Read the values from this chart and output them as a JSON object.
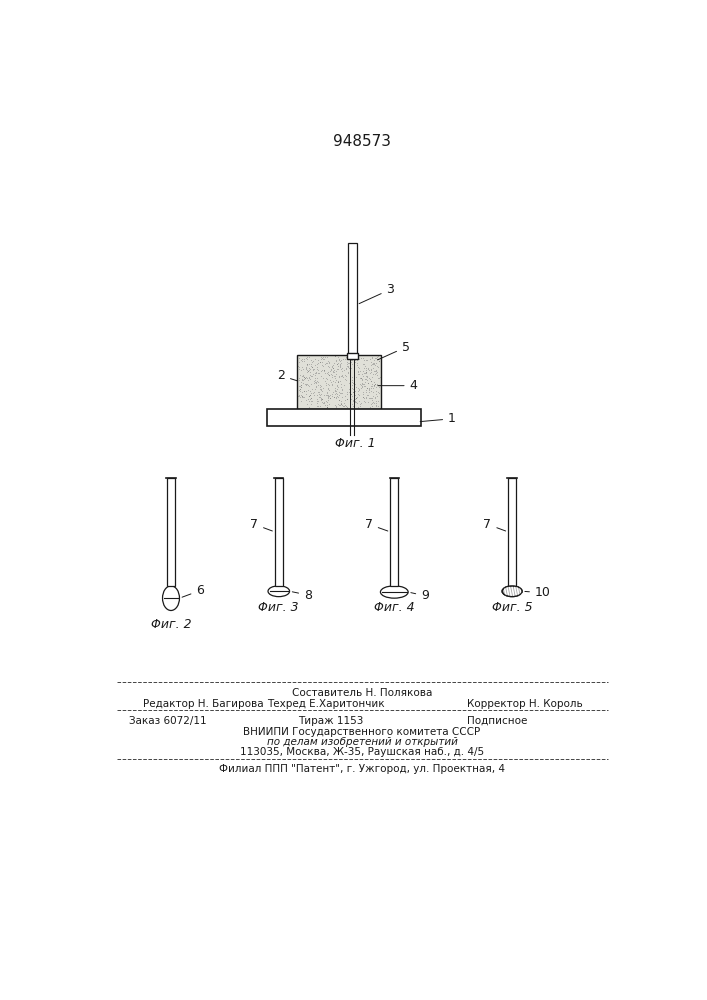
{
  "patent_number": "948573",
  "bg_color": "#ffffff",
  "line_color": "#1a1a1a",
  "fig1_caption": "Φиг. 1",
  "fig2_caption": "Φиг. 2",
  "fig3_caption": "Φиг. 3",
  "fig4_caption": "Φиг. 4",
  "fig5_caption": "Φиг. 5",
  "footer_line1_center": "Составитель Н. Полякова",
  "footer_line2_left": "Редактор Н. Багирова",
  "footer_line2_center": "Техред Е.Харитончик",
  "footer_line2_right": "Корректор Н. Король",
  "footer_line3_left": "Заказ 6072/11",
  "footer_line3_center": "Тираж 1153",
  "footer_line3_right": "Подписное",
  "footer_line4": "ВНИИПИ Государственного комитета СССР",
  "footer_line5": "по делам изобретений и открытий",
  "footer_line6": "113035, Москва, Ж-35, Раушская наб., д. 4/5",
  "footer_line7": "Филиал ППП \"Патент\", г. Ужгород, ул. Проектная, 4"
}
